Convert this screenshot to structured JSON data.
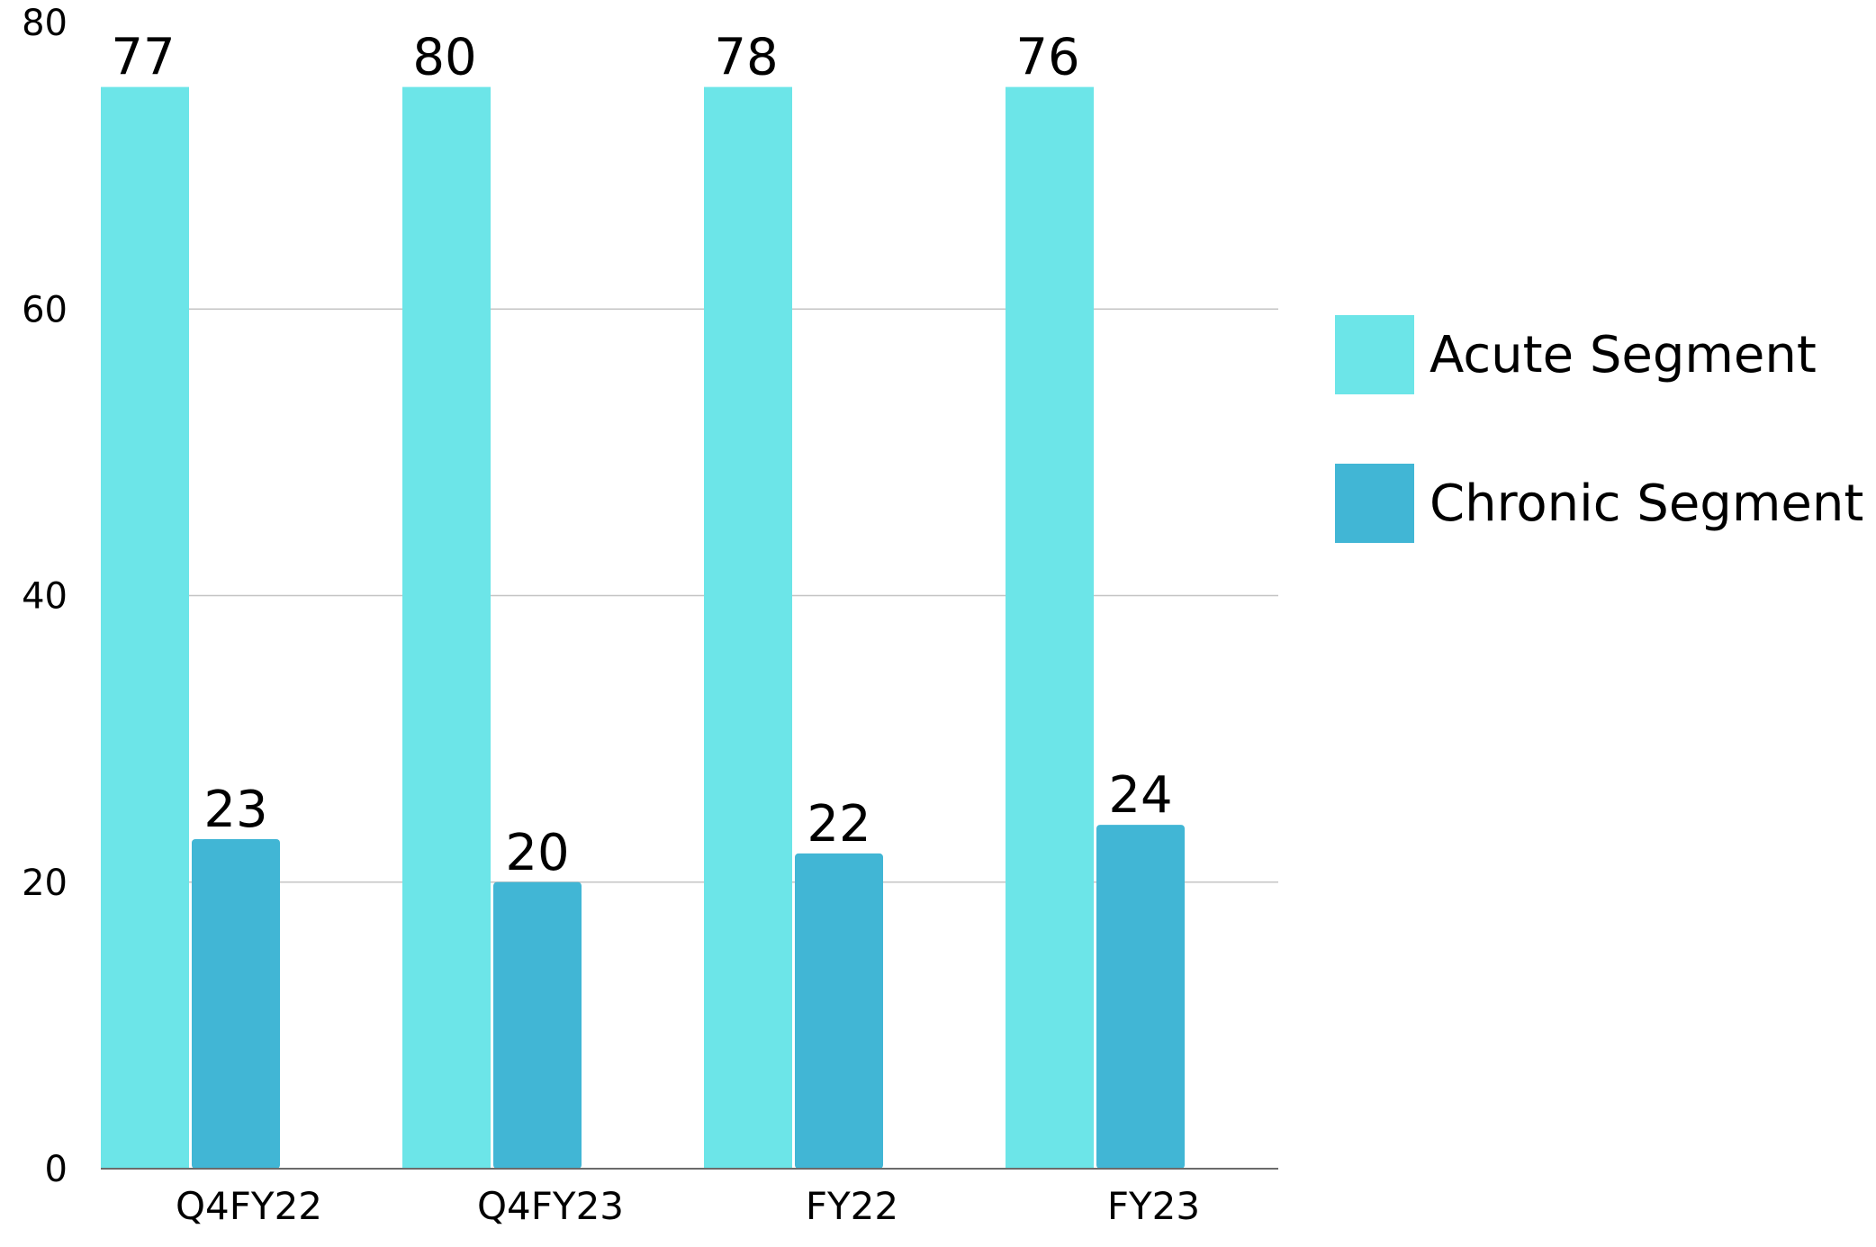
{
  "chart_data": {
    "type": "bar",
    "categories": [
      "Q4FY22",
      "Q4FY23",
      "FY22",
      "FY23"
    ],
    "series": [
      {
        "name": "Acute Segment",
        "values": [
          77,
          80,
          78,
          76
        ],
        "data_labels": [
          "77",
          "80",
          "78",
          "76"
        ],
        "color": "#6ce5e8"
      },
      {
        "name": "Chronic Segment",
        "values": [
          23,
          20,
          22,
          24
        ],
        "data_labels": [
          "23",
          "20",
          "22",
          "24"
        ],
        "color": "#41b6d5"
      }
    ],
    "y_ticks": [
      "0",
      "20",
      "40",
      "60",
      "80"
    ],
    "ylim": [
      0,
      80
    ],
    "title": "",
    "xlabel": "",
    "ylabel": "",
    "grid": true,
    "legend_position": "right",
    "colors": {
      "gridline": "#c4c4c4",
      "axis": "#6b6b6b"
    }
  }
}
